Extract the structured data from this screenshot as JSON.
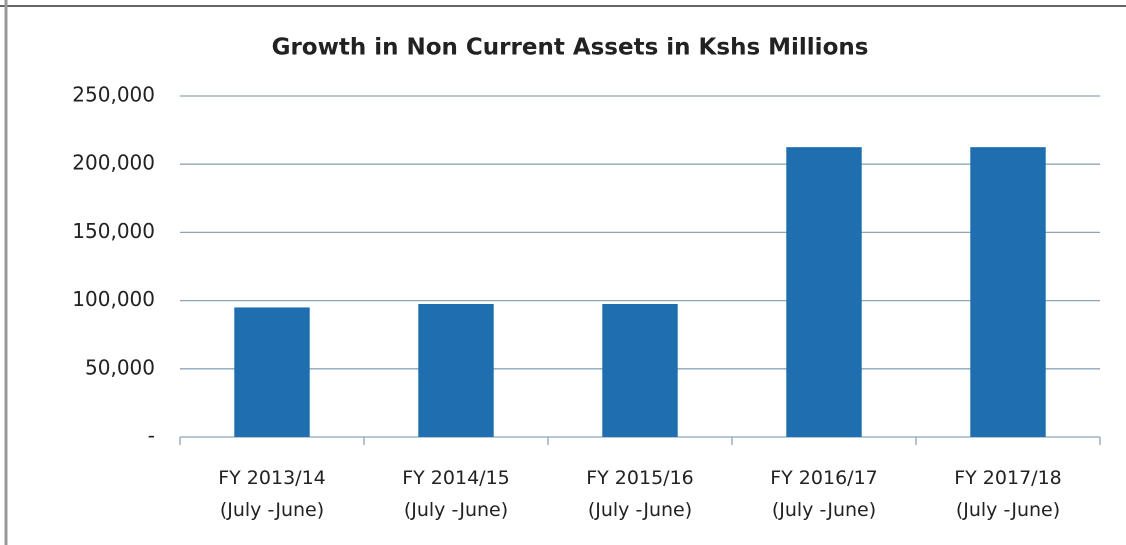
{
  "chart_data": {
    "type": "bar",
    "title": "Growth in Non Current Assets in Kshs Millions",
    "categories": [
      [
        "FY 2013/14",
        "(July -June)"
      ],
      [
        "FY 2014/15",
        "(July -June)"
      ],
      [
        "FY 2015/16",
        "(July -June)"
      ],
      [
        "FY 2016/17",
        "(July -June)"
      ],
      [
        "FY 2017/18",
        "(July -June)"
      ]
    ],
    "values": [
      95000,
      97500,
      97500,
      212500,
      212500
    ],
    "color": "#1f6fb0",
    "ylim": [
      0,
      250000
    ],
    "yticks": [
      {
        "value": 0,
        "label": "-"
      },
      {
        "value": 50000,
        "label": "50,000"
      },
      {
        "value": 100000,
        "label": "100,000"
      },
      {
        "value": 150000,
        "label": "150,000"
      },
      {
        "value": 200000,
        "label": "200,000"
      },
      {
        "value": 250000,
        "label": "250,000"
      }
    ],
    "grid": true
  }
}
